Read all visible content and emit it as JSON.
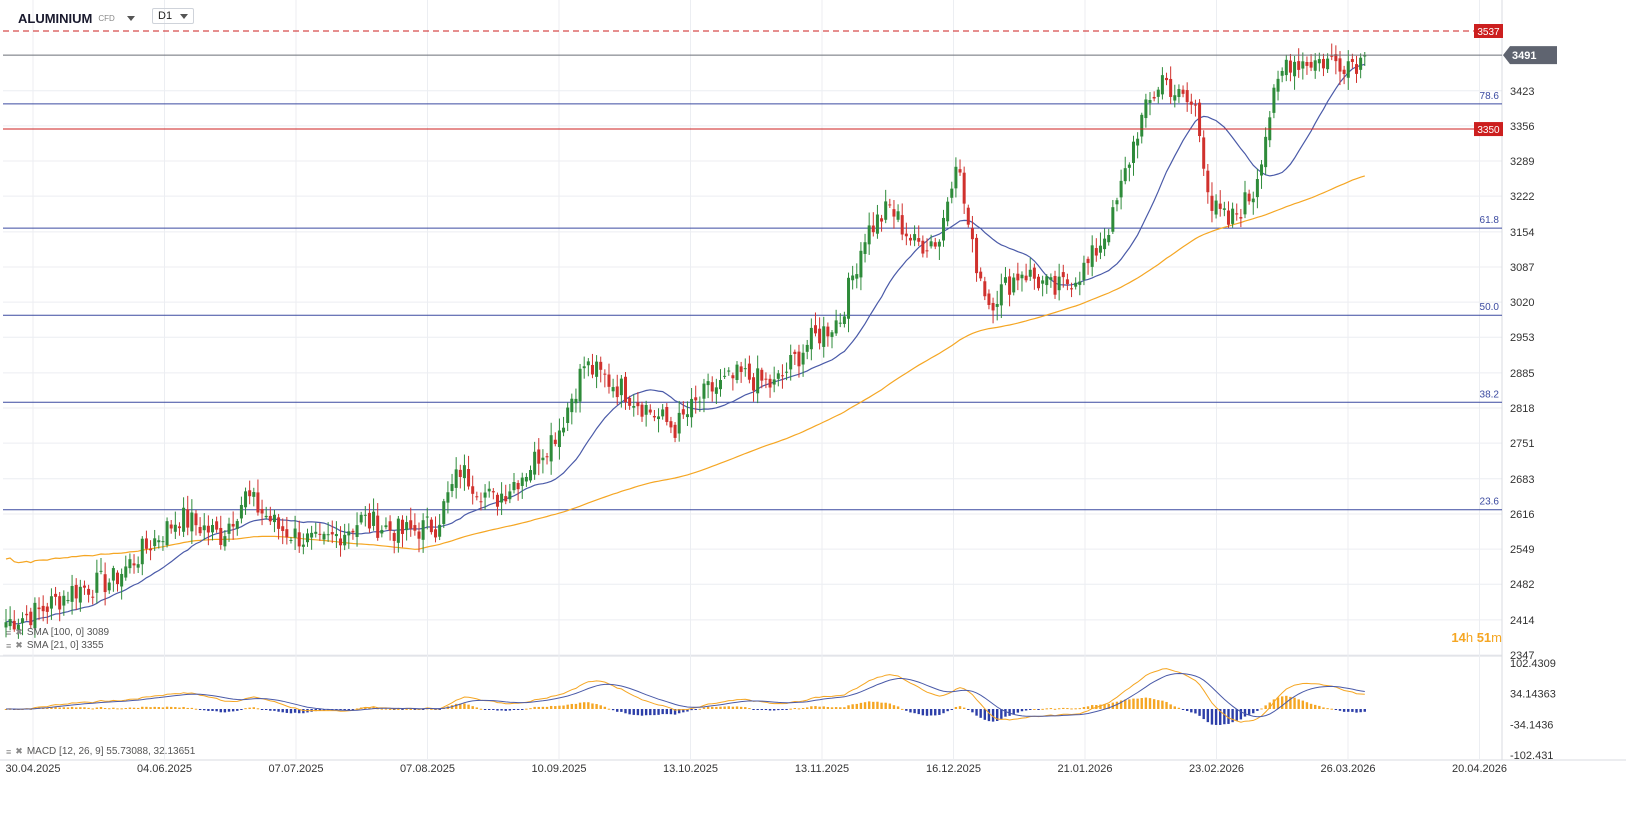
{
  "header": {
    "symbol": "ALUMINIUM",
    "symbol_type": "CFD",
    "timeframe": "D1"
  },
  "indicators": {
    "sma100_label": "SMA [100, 0] 3089",
    "sma21_label": "SMA [21, 0] 3355",
    "macd_label": "MACD [12, 26, 9] 55.73088, 32.13651"
  },
  "timer": {
    "hours": "14",
    "h_unit": "h",
    "minutes": "51",
    "m_unit": "m"
  },
  "colors": {
    "up": "#2e8b3a",
    "down": "#d0312d",
    "sma21": "#4a5aa8",
    "sma100": "#f5a623",
    "fib": "#3b4aa0",
    "resistance": "#cc1f1f",
    "grid": "#eceef2",
    "axis_text": "#333333"
  },
  "chart_data": [
    {
      "type": "candlestick",
      "title": "ALUMINIUM",
      "timeframe": "D1",
      "ylim": [
        2347,
        3537
      ],
      "y_ticks": [
        3423,
        3356,
        3289,
        3222,
        3154,
        3087,
        3020,
        2953,
        2885,
        2818,
        2751,
        2683,
        2616,
        2549,
        2482,
        2414,
        2347
      ],
      "x_ticks": [
        "30.04.2025",
        "04.06.2025",
        "07.07.2025",
        "07.08.2025",
        "10.09.2025",
        "13.10.2025",
        "13.11.2025",
        "16.12.2025",
        "21.01.2026",
        "23.02.2026",
        "26.03.2026",
        "20.04.2026"
      ],
      "last_price": 3491,
      "price_labels": [
        {
          "label": "3537",
          "value": 3537,
          "style": "dashed"
        },
        {
          "label": "3350",
          "value": 3350,
          "style": "solid"
        }
      ],
      "fib_levels": [
        {
          "label": "78.6",
          "value": 3398
        },
        {
          "label": "61.8",
          "value": 3161
        },
        {
          "label": "50.0",
          "value": 2995
        },
        {
          "label": "38.2",
          "value": 2829
        },
        {
          "label": "23.6",
          "value": 2624
        }
      ],
      "trend_anchors": [
        [
          0,
          2410
        ],
        [
          8,
          2430
        ],
        [
          16,
          2470
        ],
        [
          26,
          2490
        ],
        [
          35,
          2560
        ],
        [
          42,
          2610
        ],
        [
          52,
          2575
        ],
        [
          58,
          2650
        ],
        [
          66,
          2590
        ],
        [
          76,
          2555
        ],
        [
          86,
          2605
        ],
        [
          96,
          2580
        ],
        [
          104,
          2595
        ],
        [
          110,
          2700
        ],
        [
          118,
          2640
        ],
        [
          126,
          2700
        ],
        [
          134,
          2780
        ],
        [
          140,
          2900
        ],
        [
          150,
          2850
        ],
        [
          158,
          2800
        ],
        [
          162,
          2780
        ],
        [
          170,
          2850
        ],
        [
          178,
          2880
        ],
        [
          186,
          2860
        ],
        [
          194,
          2940
        ],
        [
          202,
          2990
        ],
        [
          208,
          3150
        ],
        [
          214,
          3200
        ],
        [
          220,
          3130
        ],
        [
          226,
          3140
        ],
        [
          230,
          3300
        ],
        [
          234,
          3120
        ],
        [
          238,
          3020
        ],
        [
          246,
          3080
        ],
        [
          254,
          3040
        ],
        [
          262,
          3090
        ],
        [
          268,
          3180
        ],
        [
          274,
          3350
        ],
        [
          280,
          3450
        ],
        [
          284,
          3410
        ],
        [
          288,
          3390
        ],
        [
          292,
          3200
        ],
        [
          296,
          3170
        ],
        [
          302,
          3230
        ],
        [
          306,
          3380
        ],
        [
          310,
          3480
        ]
      ],
      "series": [
        {
          "name": "SMA [100, 0]",
          "value": 3089
        },
        {
          "name": "SMA [21, 0]",
          "value": 3355
        }
      ]
    },
    {
      "type": "bar",
      "title": "MACD [12, 26, 9]",
      "macd": 55.73088,
      "signal": 32.13651,
      "ylim": [
        -102.431,
        102.4309
      ],
      "y_ticks": [
        102.4309,
        34.14363,
        -34.1436,
        -102.431
      ]
    }
  ]
}
